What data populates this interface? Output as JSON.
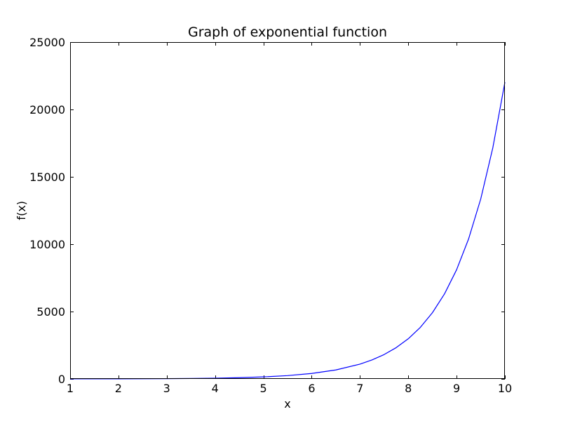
{
  "chart_data": {
    "type": "line",
    "title": "Graph of exponential function",
    "xlabel": "x",
    "ylabel": "f(x)",
    "xlim": [
      1,
      10
    ],
    "ylim": [
      0,
      25000
    ],
    "xticks": [
      1,
      2,
      3,
      4,
      5,
      6,
      7,
      8,
      9,
      10
    ],
    "yticks": [
      0,
      5000,
      10000,
      15000,
      20000,
      25000
    ],
    "grid": false,
    "legend": "none",
    "series": [
      {
        "color": "#0000ff",
        "x": [
          1,
          1.5,
          2,
          2.5,
          3,
          3.5,
          4,
          4.5,
          5,
          5.5,
          6,
          6.5,
          7,
          7.25,
          7.5,
          7.75,
          8,
          8.25,
          8.5,
          8.75,
          9,
          9.25,
          9.5,
          9.75,
          10
        ],
        "y": [
          3,
          4,
          7,
          12,
          20,
          33,
          55,
          90,
          148,
          245,
          403,
          665,
          1097,
          1408,
          1808,
          2322,
          2981,
          3827,
          4915,
          6311,
          8103,
          10405,
          13360,
          17154,
          22026
        ]
      }
    ]
  }
}
